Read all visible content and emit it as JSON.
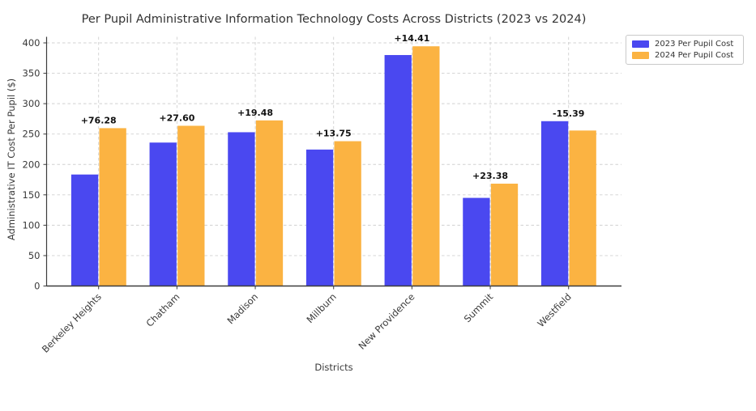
{
  "chart_data": {
    "type": "bar",
    "title": "Per Pupil Administrative Information Technology Costs Across Districts (2023 vs 2024)",
    "xlabel": "Districts",
    "ylabel": "Administrative IT Cost Per Pupil ($)",
    "categories": [
      "Berkeley Heights",
      "Chatham",
      "Madison",
      "Millburn",
      "New Providence",
      "Summit",
      "Westfield"
    ],
    "series": [
      {
        "name": "2023 Per Pupil Cost",
        "color": "#4a48f0",
        "values": [
          183.43,
          236.0,
          253.0,
          224.5,
          380.0,
          145.0,
          271.2
        ]
      },
      {
        "name": "2024 Per Pupil Cost",
        "color": "#fbb342",
        "values": [
          259.71,
          263.6,
          272.48,
          238.25,
          394.41,
          168.38,
          255.81
        ]
      }
    ],
    "annotations": [
      "+76.28",
      "+27.60",
      "+19.48",
      "+13.75",
      "+14.41",
      "+23.38",
      "-15.39"
    ],
    "yticks": [
      0,
      50,
      100,
      150,
      200,
      250,
      300,
      350,
      400
    ],
    "ylim": [
      0,
      410
    ],
    "grid": true,
    "grid_style": "dashed",
    "legend_position": "upper right outside",
    "colors": {
      "bar_2023": "#4a48f0",
      "bar_2024": "#fbb342",
      "gridline": "#d0d0d0",
      "spine": "#3c3c3c",
      "annotation": "#111111"
    }
  }
}
